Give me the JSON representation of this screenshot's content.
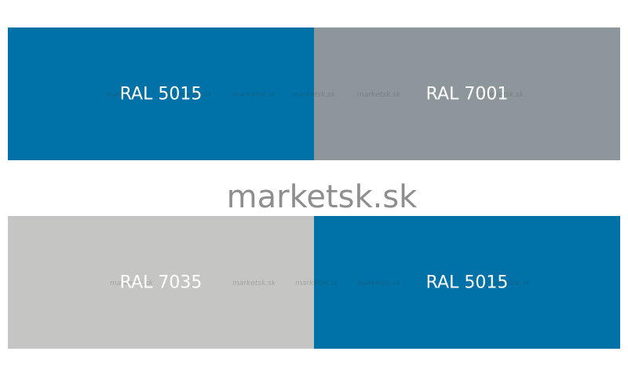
{
  "brand": "marketsk.sk",
  "watermark": "marketsk.sk",
  "swatches": [
    {
      "label": "RAL 5015",
      "color": "#0072a7"
    },
    {
      "label": "RAL 7001",
      "color": "#8d979b"
    },
    {
      "label": "RAL 7035",
      "color": "#c5c6c4"
    },
    {
      "label": "RAL 5015",
      "color": "#0072a7"
    }
  ]
}
